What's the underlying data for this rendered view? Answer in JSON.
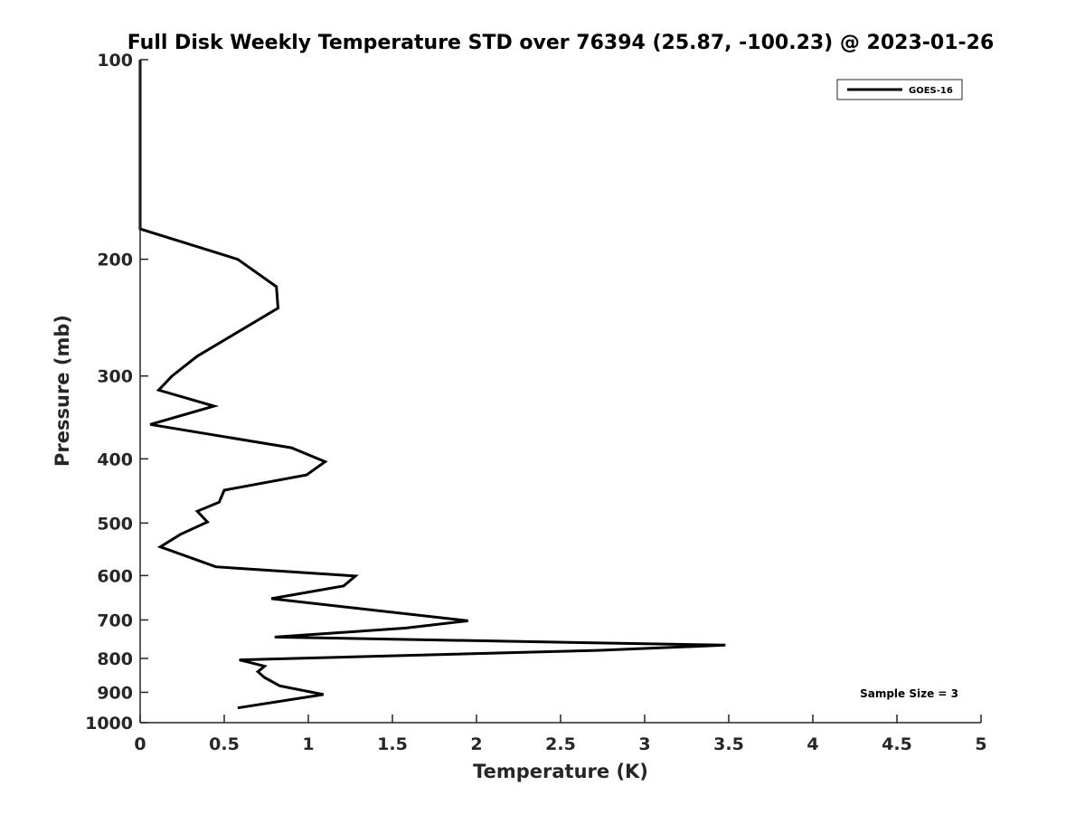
{
  "chart_data": {
    "type": "line",
    "title": "Full Disk Weekly Temperature STD over 76394 (25.87, -100.23) @ 2023-01-26",
    "xlabel": "Temperature (K)",
    "ylabel": "Pressure (mb)",
    "xlim": [
      0,
      5
    ],
    "ylim": [
      100,
      1000
    ],
    "yscale": "log",
    "y_reversed": true,
    "grid": false,
    "legend_position": "top-right",
    "x_ticks": [
      "0",
      "0.5",
      "1",
      "1.5",
      "2",
      "2.5",
      "3",
      "3.5",
      "4",
      "4.5",
      "5"
    ],
    "y_ticks": [
      "100",
      "200",
      "300",
      "400",
      "500",
      "600",
      "700",
      "800",
      "900",
      "1000"
    ],
    "annotation": "Sample Size = 3",
    "series": [
      {
        "name": "GOES-16",
        "color": "#000000",
        "points": [
          [
            0.0,
            100
          ],
          [
            0.0,
            180
          ],
          [
            0.58,
            200
          ],
          [
            0.81,
            220
          ],
          [
            0.82,
            237
          ],
          [
            0.34,
            280
          ],
          [
            0.19,
            300
          ],
          [
            0.11,
            315
          ],
          [
            0.44,
            333
          ],
          [
            0.06,
            355
          ],
          [
            0.9,
            385
          ],
          [
            1.1,
            404
          ],
          [
            0.99,
            423
          ],
          [
            0.5,
            446
          ],
          [
            0.47,
            465
          ],
          [
            0.34,
            480
          ],
          [
            0.4,
            498
          ],
          [
            0.24,
            520
          ],
          [
            0.12,
            543
          ],
          [
            0.31,
            565
          ],
          [
            0.45,
            582
          ],
          [
            1.28,
            601
          ],
          [
            1.21,
            622
          ],
          [
            0.78,
            650
          ],
          [
            1.95,
            702
          ],
          [
            1.58,
            720
          ],
          [
            0.8,
            743
          ],
          [
            3.48,
            764
          ],
          [
            2.72,
            778
          ],
          [
            0.59,
            804
          ],
          [
            0.74,
            822
          ],
          [
            0.7,
            838
          ],
          [
            0.74,
            855
          ],
          [
            0.83,
            880
          ],
          [
            1.09,
            907
          ],
          [
            0.58,
            950
          ]
        ]
      }
    ]
  }
}
